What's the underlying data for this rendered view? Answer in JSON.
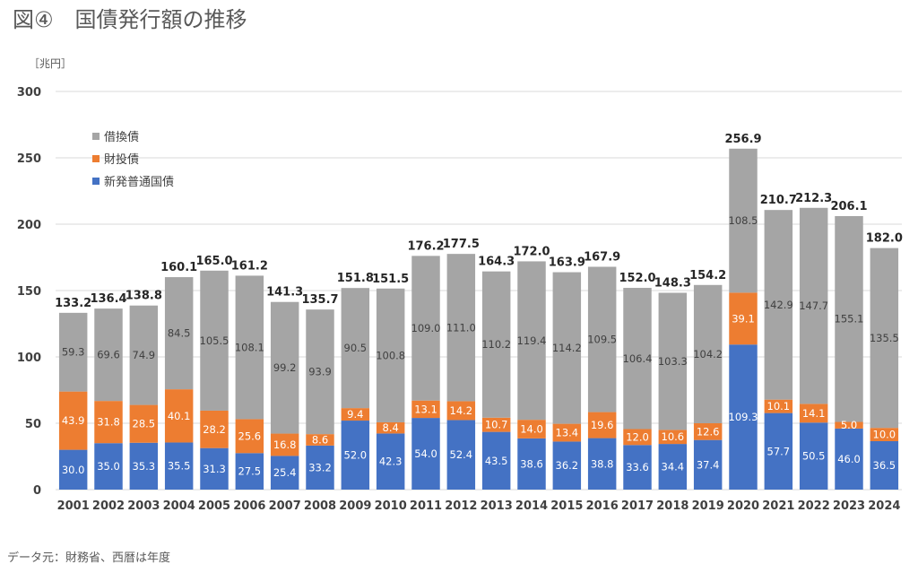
{
  "title": "図④　国債発行額の推移",
  "unit_label": "［兆円］",
  "source_note": "データ元：財務省、西暦は年度",
  "colors": {
    "借換債": "#a5a5a5",
    "財投債": "#ed7d31",
    "新発普通国債": "#4472c4"
  },
  "chart_data": {
    "type": "bar",
    "stacked": true,
    "title": "図④　国債発行額の推移",
    "ylabel": "［兆円］",
    "xlabel": "",
    "ylim": [
      0,
      300
    ],
    "yticks": [
      0,
      50,
      100,
      150,
      200,
      250,
      300
    ],
    "grid": true,
    "legend_position": "top-left",
    "categories": [
      "2001",
      "2002",
      "2003",
      "2004",
      "2005",
      "2006",
      "2007",
      "2008",
      "2009",
      "2010",
      "2011",
      "2012",
      "2013",
      "2014",
      "2015",
      "2016",
      "2017",
      "2018",
      "2019",
      "2020",
      "2021",
      "2022",
      "2023",
      "2024"
    ],
    "series": [
      {
        "name": "新発普通国債",
        "values": [
          30.0,
          35.0,
          35.3,
          35.5,
          31.3,
          27.5,
          25.4,
          33.2,
          52.0,
          42.3,
          54.0,
          52.4,
          43.5,
          38.6,
          36.2,
          38.8,
          33.6,
          34.4,
          37.4,
          109.3,
          57.7,
          50.5,
          46.0,
          36.5
        ]
      },
      {
        "name": "財投債",
        "values": [
          43.9,
          31.8,
          28.5,
          40.1,
          28.2,
          25.6,
          16.8,
          8.6,
          9.4,
          8.4,
          13.1,
          14.2,
          10.7,
          14.0,
          13.4,
          19.6,
          12.0,
          10.6,
          12.6,
          39.1,
          10.1,
          14.1,
          5.0,
          10.0
        ]
      },
      {
        "name": "借換債",
        "values": [
          59.3,
          69.6,
          74.9,
          84.5,
          105.5,
          108.1,
          99.2,
          93.9,
          90.5,
          100.8,
          109.0,
          111.0,
          110.2,
          119.4,
          114.2,
          109.5,
          106.4,
          103.3,
          104.2,
          108.5,
          142.9,
          147.7,
          155.1,
          135.5
        ]
      }
    ],
    "totals": [
      133.2,
      136.4,
      138.8,
      160.1,
      165.0,
      161.2,
      141.3,
      135.7,
      151.8,
      151.5,
      176.2,
      177.5,
      164.3,
      172.0,
      163.9,
      167.9,
      152.0,
      148.3,
      154.2,
      256.9,
      210.7,
      212.3,
      206.1,
      182.0
    ],
    "legend": [
      "借換債",
      "財投債",
      "新発普通国債"
    ]
  }
}
